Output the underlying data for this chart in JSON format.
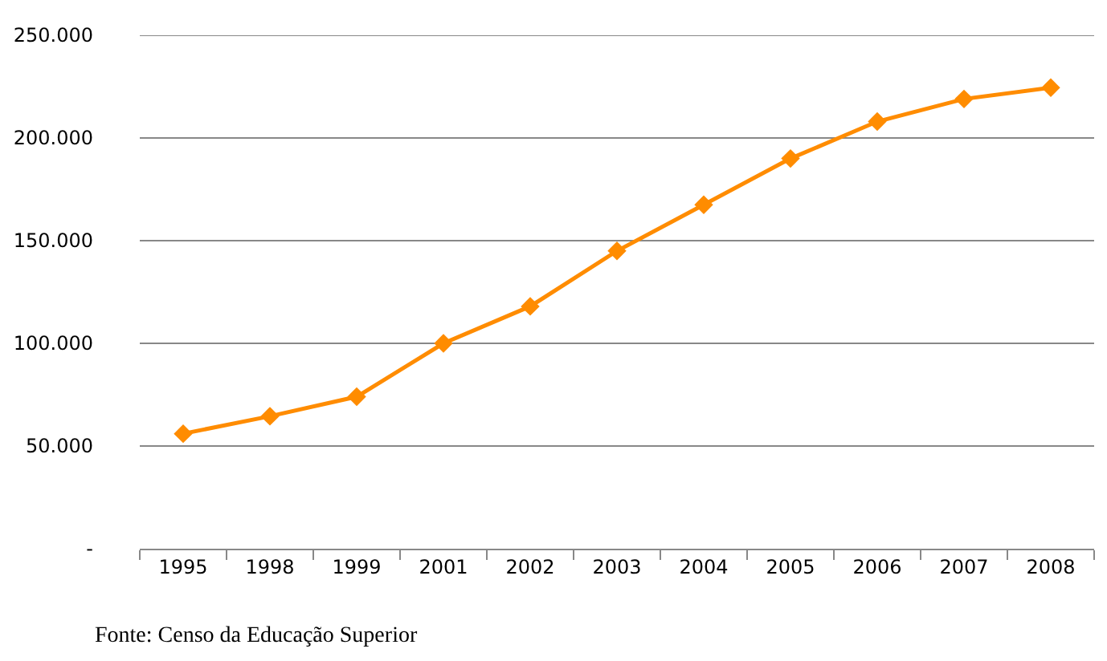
{
  "chart_data": {
    "type": "line",
    "categories": [
      "1995",
      "1998",
      "1999",
      "2001",
      "2002",
      "2003",
      "2004",
      "2005",
      "2006",
      "2007",
      "2008"
    ],
    "series": [
      {
        "color": "#ff8c00",
        "values": [
          56000,
          64500,
          74000,
          100000,
          118000,
          145000,
          167500,
          190000,
          208000,
          219000,
          224500
        ]
      }
    ],
    "ylim": [
      0,
      250000
    ],
    "yticks": [
      {
        "value": 0,
        "label": "-"
      },
      {
        "value": 50000,
        "label": "50.000"
      },
      {
        "value": 100000,
        "label": "100.000"
      },
      {
        "value": 150000,
        "label": "150.000"
      },
      {
        "value": 200000,
        "label": "200.000"
      },
      {
        "value": 250000,
        "label": "250.000"
      }
    ],
    "grid": "y",
    "marker": "diamond",
    "line_style": "solid",
    "annotations": [
      "Fonte: Censo da Educação Superior"
    ]
  }
}
